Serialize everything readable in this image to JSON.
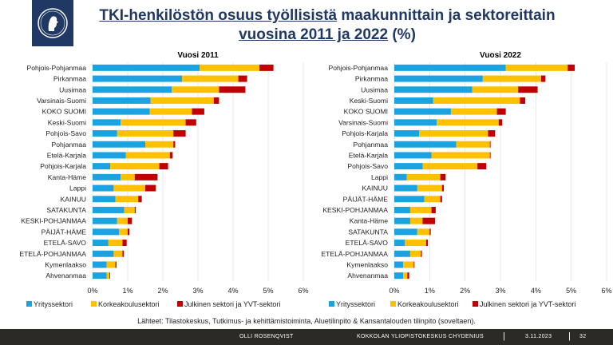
{
  "title": {
    "part1": "TKI-henkilöstön osuus työllisistä",
    "part2": "maakunnittain ja sektoreittain",
    "part3": "vuosina 2011 ja 2022",
    "part4": "(%)"
  },
  "colors": {
    "Yrityssektori": "#1aa3e0",
    "Korkeakoulusektori": "#ffc000",
    "Julkinen sektori ja YVT-sektori": "#c00000",
    "header_bg": "#1f3864",
    "footer_bg": "#2c2a26"
  },
  "source": "Lähteet: Tilastokeskus, Tutkimus- ja kehittämistoiminta, Aluetilinpito & Kansantalouden tilinpito (soveltaen).",
  "footer": {
    "author": "OLLI ROSENQVIST",
    "org": "KOKKOLAN YLIOPISTOKESKUS CHYDENIUS",
    "date": "3.11.2023",
    "page": "32"
  },
  "chart_data": [
    {
      "type": "bar",
      "orientation": "horizontal",
      "stacked": true,
      "title": "Vuosi 2011",
      "xlim": [
        0,
        6
      ],
      "xticks": [
        "0%",
        "1%",
        "2%",
        "3%",
        "4%",
        "5%",
        "6%"
      ],
      "legend_position": "bottom",
      "categories": [
        "Pohjois-Pohjanmaa",
        "Pirkanmaa",
        "Uusimaa",
        "Varsinais-Suomi",
        "KOKO SUOMI",
        "Keski-Suomi",
        "Pohjois-Savo",
        "Pohjanmaa",
        "Etelä-Karjala",
        "Pohjois-Karjala",
        "Kanta-Häme",
        "Lappi",
        "KAINUU",
        "SATAKUNTA",
        "KESKI-POHJANMAA",
        "PÄIJÄT-HÄME",
        "ETELÄ-SAVO",
        "ETELÄ-POHJANMAA",
        "Kymenlaakso",
        "Ahvenanmaa"
      ],
      "series": [
        {
          "name": "Yrityssektori",
          "values": [
            3.05,
            2.55,
            2.25,
            1.65,
            1.63,
            0.8,
            0.7,
            1.5,
            0.95,
            0.5,
            0.8,
            0.6,
            0.65,
            0.9,
            0.7,
            0.75,
            0.45,
            0.6,
            0.4,
            0.4
          ]
        },
        {
          "name": "Korkeakoulusektori",
          "values": [
            1.7,
            1.6,
            1.35,
            1.8,
            1.2,
            1.85,
            1.6,
            0.8,
            1.25,
            1.4,
            0.4,
            0.9,
            0.65,
            0.3,
            0.3,
            0.25,
            0.4,
            0.25,
            0.25,
            0.08
          ]
        },
        {
          "name": "Julkinen sektori ja YVT-sektori",
          "values": [
            0.4,
            0.25,
            0.75,
            0.15,
            0.35,
            0.3,
            0.35,
            0.05,
            0.08,
            0.25,
            0.65,
            0.3,
            0.1,
            0.03,
            0.12,
            0.05,
            0.12,
            0.04,
            0.03,
            0.02
          ]
        }
      ]
    },
    {
      "type": "bar",
      "orientation": "horizontal",
      "stacked": true,
      "title": "Vuosi 2022",
      "xlim": [
        0,
        6
      ],
      "xticks": [
        "0%",
        "1%",
        "2%",
        "3%",
        "4%",
        "5%",
        "6%"
      ],
      "legend_position": "bottom",
      "categories": [
        "Pohjois-Pohjanmaa",
        "Pirkanmaa",
        "Uusimaa",
        "Keski-Suomi",
        "KOKO SUOMI",
        "Varsinais-Suomi",
        "Pohjois-Karjala",
        "Pohjanmaa",
        "Etelä-Karjala",
        "Pohjois-Savo",
        "Lappi",
        "KAINUU",
        "PÄIJÄT-HÄME",
        "KESKI-POHJANMAA",
        "Kanta-Häme",
        "SATAKUNTA",
        "ETELÄ-SAVO",
        "ETELÄ-POHJANMAA",
        "Kymenlaakso",
        "Ahvenanmaa"
      ],
      "series": [
        {
          "name": "Yrityssektori",
          "values": [
            3.15,
            2.5,
            2.2,
            1.1,
            1.6,
            1.2,
            0.7,
            1.75,
            1.05,
            0.8,
            0.35,
            0.65,
            0.85,
            0.45,
            0.45,
            0.65,
            0.3,
            0.45,
            0.25,
            0.25
          ]
        },
        {
          "name": "Korkeakoulusektori",
          "values": [
            1.75,
            1.65,
            1.3,
            2.45,
            1.3,
            1.75,
            1.95,
            0.95,
            1.65,
            1.55,
            0.95,
            0.7,
            0.45,
            0.6,
            0.35,
            0.35,
            0.6,
            0.3,
            0.3,
            0.12
          ]
        },
        {
          "name": "Julkinen sektori ja YVT-sektori",
          "values": [
            0.2,
            0.12,
            0.55,
            0.15,
            0.25,
            0.1,
            0.2,
            0.02,
            0.02,
            0.25,
            0.15,
            0.05,
            0.05,
            0.12,
            0.35,
            0.03,
            0.05,
            0.03,
            0.02,
            0.05
          ]
        }
      ]
    }
  ]
}
